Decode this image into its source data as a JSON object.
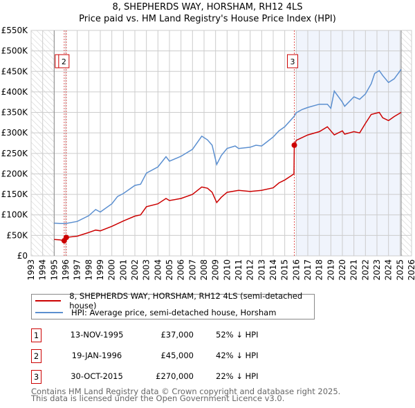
{
  "chart_data": {
    "type": "line",
    "title": "8, SHEPHERDS WAY, HORSHAM, RH12 4LS",
    "subtitle": "Price paid vs. HM Land Registry's House Price Index (HPI)",
    "xlim": [
      1993,
      2026
    ],
    "ylim": [
      0,
      550000
    ],
    "x_ticks": [
      "1993",
      "1994",
      "1995",
      "1996",
      "1997",
      "1998",
      "1999",
      "2000",
      "2001",
      "2002",
      "2003",
      "2004",
      "2005",
      "2006",
      "2007",
      "2008",
      "2009",
      "2010",
      "2011",
      "2012",
      "2013",
      "2014",
      "2015",
      "2016",
      "2017",
      "2018",
      "2019",
      "2020",
      "2021",
      "2022",
      "2023",
      "2024",
      "2025",
      "2026"
    ],
    "y_ticks": [
      {
        "value": 0,
        "label": "£0"
      },
      {
        "value": 50000,
        "label": "£50K"
      },
      {
        "value": 100000,
        "label": "£100K"
      },
      {
        "value": 150000,
        "label": "£150K"
      },
      {
        "value": 200000,
        "label": "£200K"
      },
      {
        "value": 250000,
        "label": "£250K"
      },
      {
        "value": 300000,
        "label": "£300K"
      },
      {
        "value": 350000,
        "label": "£350K"
      },
      {
        "value": 400000,
        "label": "£400K"
      },
      {
        "value": 450000,
        "label": "£450K"
      },
      {
        "value": 500000,
        "label": "£500K"
      },
      {
        "value": 550000,
        "label": "£550K"
      }
    ],
    "grid": true,
    "hatched_ranges": [
      [
        1993,
        1995.0
      ],
      [
        2025.1,
        2026
      ]
    ],
    "shaded_range": [
      2016.0,
      2025.1
    ],
    "series": [
      {
        "name": "8, SHEPHERDS WAY, HORSHAM, RH12 4LS (semi-detached house)",
        "color": "#cc0000",
        "x": [
          1995.0,
          1995.5,
          1995.87,
          1996.05,
          1997,
          1998,
          1998.6,
          1999,
          2000,
          2001,
          2002,
          2002.5,
          2003,
          2004,
          2004.7,
          2005,
          2006,
          2007,
          2007.8,
          2008.3,
          2008.7,
          2009.1,
          2009.5,
          2010,
          2011,
          2012,
          2013,
          2014,
          2014.5,
          2015,
          2015.8,
          2015.83,
          2016,
          2017,
          2018,
          2018.7,
          2019.3,
          2020,
          2020.2,
          2021,
          2021.5,
          2022,
          2022.5,
          2023.2,
          2023.5,
          2024,
          2024.5,
          2025.1
        ],
        "y": [
          40000,
          39000,
          37000,
          45000,
          48000,
          57000,
          63000,
          61000,
          72000,
          85000,
          97000,
          100000,
          120000,
          127000,
          140000,
          135000,
          140000,
          150000,
          168000,
          165000,
          155000,
          130000,
          143000,
          155000,
          160000,
          157000,
          160000,
          166000,
          178000,
          185000,
          200000,
          270000,
          282000,
          295000,
          303000,
          315000,
          295000,
          305000,
          297000,
          303000,
          300000,
          323000,
          345000,
          350000,
          337000,
          330000,
          340000,
          350000
        ]
      },
      {
        "name": "HPI: Average price, semi-detached house, Horsham",
        "color": "#5b8fd0",
        "x": [
          1995.0,
          1995.5,
          1996,
          1997,
          1998,
          1998.6,
          1999,
          2000,
          2000.5,
          2001,
          2002,
          2002.5,
          2003,
          2004,
          2004.7,
          2005,
          2006,
          2007,
          2007.8,
          2008.3,
          2008.7,
          2009.1,
          2009.5,
          2010,
          2010.7,
          2011,
          2012,
          2012.5,
          2013,
          2014,
          2014.5,
          2015,
          2015.8,
          2016,
          2016.5,
          2017,
          2018,
          2018.7,
          2019,
          2019.3,
          2020,
          2020.2,
          2021,
          2021.5,
          2022,
          2022.5,
          2022.8,
          2023.2,
          2023.5,
          2024,
          2024.5,
          2025.1
        ],
        "y": [
          80000,
          79000,
          79000,
          84000,
          98000,
          113000,
          107000,
          127000,
          145000,
          152000,
          172000,
          175000,
          202000,
          217000,
          242000,
          231000,
          243000,
          260000,
          292000,
          283000,
          270000,
          223000,
          245000,
          262000,
          268000,
          262000,
          265000,
          270000,
          268000,
          290000,
          305000,
          315000,
          340000,
          349000,
          357000,
          362000,
          370000,
          370000,
          360000,
          402000,
          375000,
          365000,
          388000,
          382000,
          395000,
          420000,
          445000,
          452000,
          440000,
          423000,
          432000,
          455000
        ]
      }
    ],
    "sales": [
      {
        "num": "1",
        "x": 1995.87,
        "y": 37000
      },
      {
        "num": "2",
        "x": 1996.05,
        "y": 45000
      },
      {
        "num": "3",
        "x": 2015.83,
        "y": 270000
      }
    ]
  },
  "legend": {
    "property": "8, SHEPHERDS WAY, HORSHAM, RH12 4LS (semi-detached house)",
    "hpi": "HPI: Average price, semi-detached house, Horsham"
  },
  "table": [
    {
      "num": "1",
      "date": "13-NOV-1995",
      "price": "£37,000",
      "hpi": "52% ↓ HPI"
    },
    {
      "num": "2",
      "date": "19-JAN-1996",
      "price": "£45,000",
      "hpi": "42% ↓ HPI"
    },
    {
      "num": "3",
      "date": "30-OCT-2015",
      "price": "£270,000",
      "hpi": "22% ↓ HPI"
    }
  ],
  "footer": {
    "line1": "Contains HM Land Registry data © Crown copyright and database right 2025.",
    "line2": "This data is licensed under the Open Government Licence v3.0."
  }
}
